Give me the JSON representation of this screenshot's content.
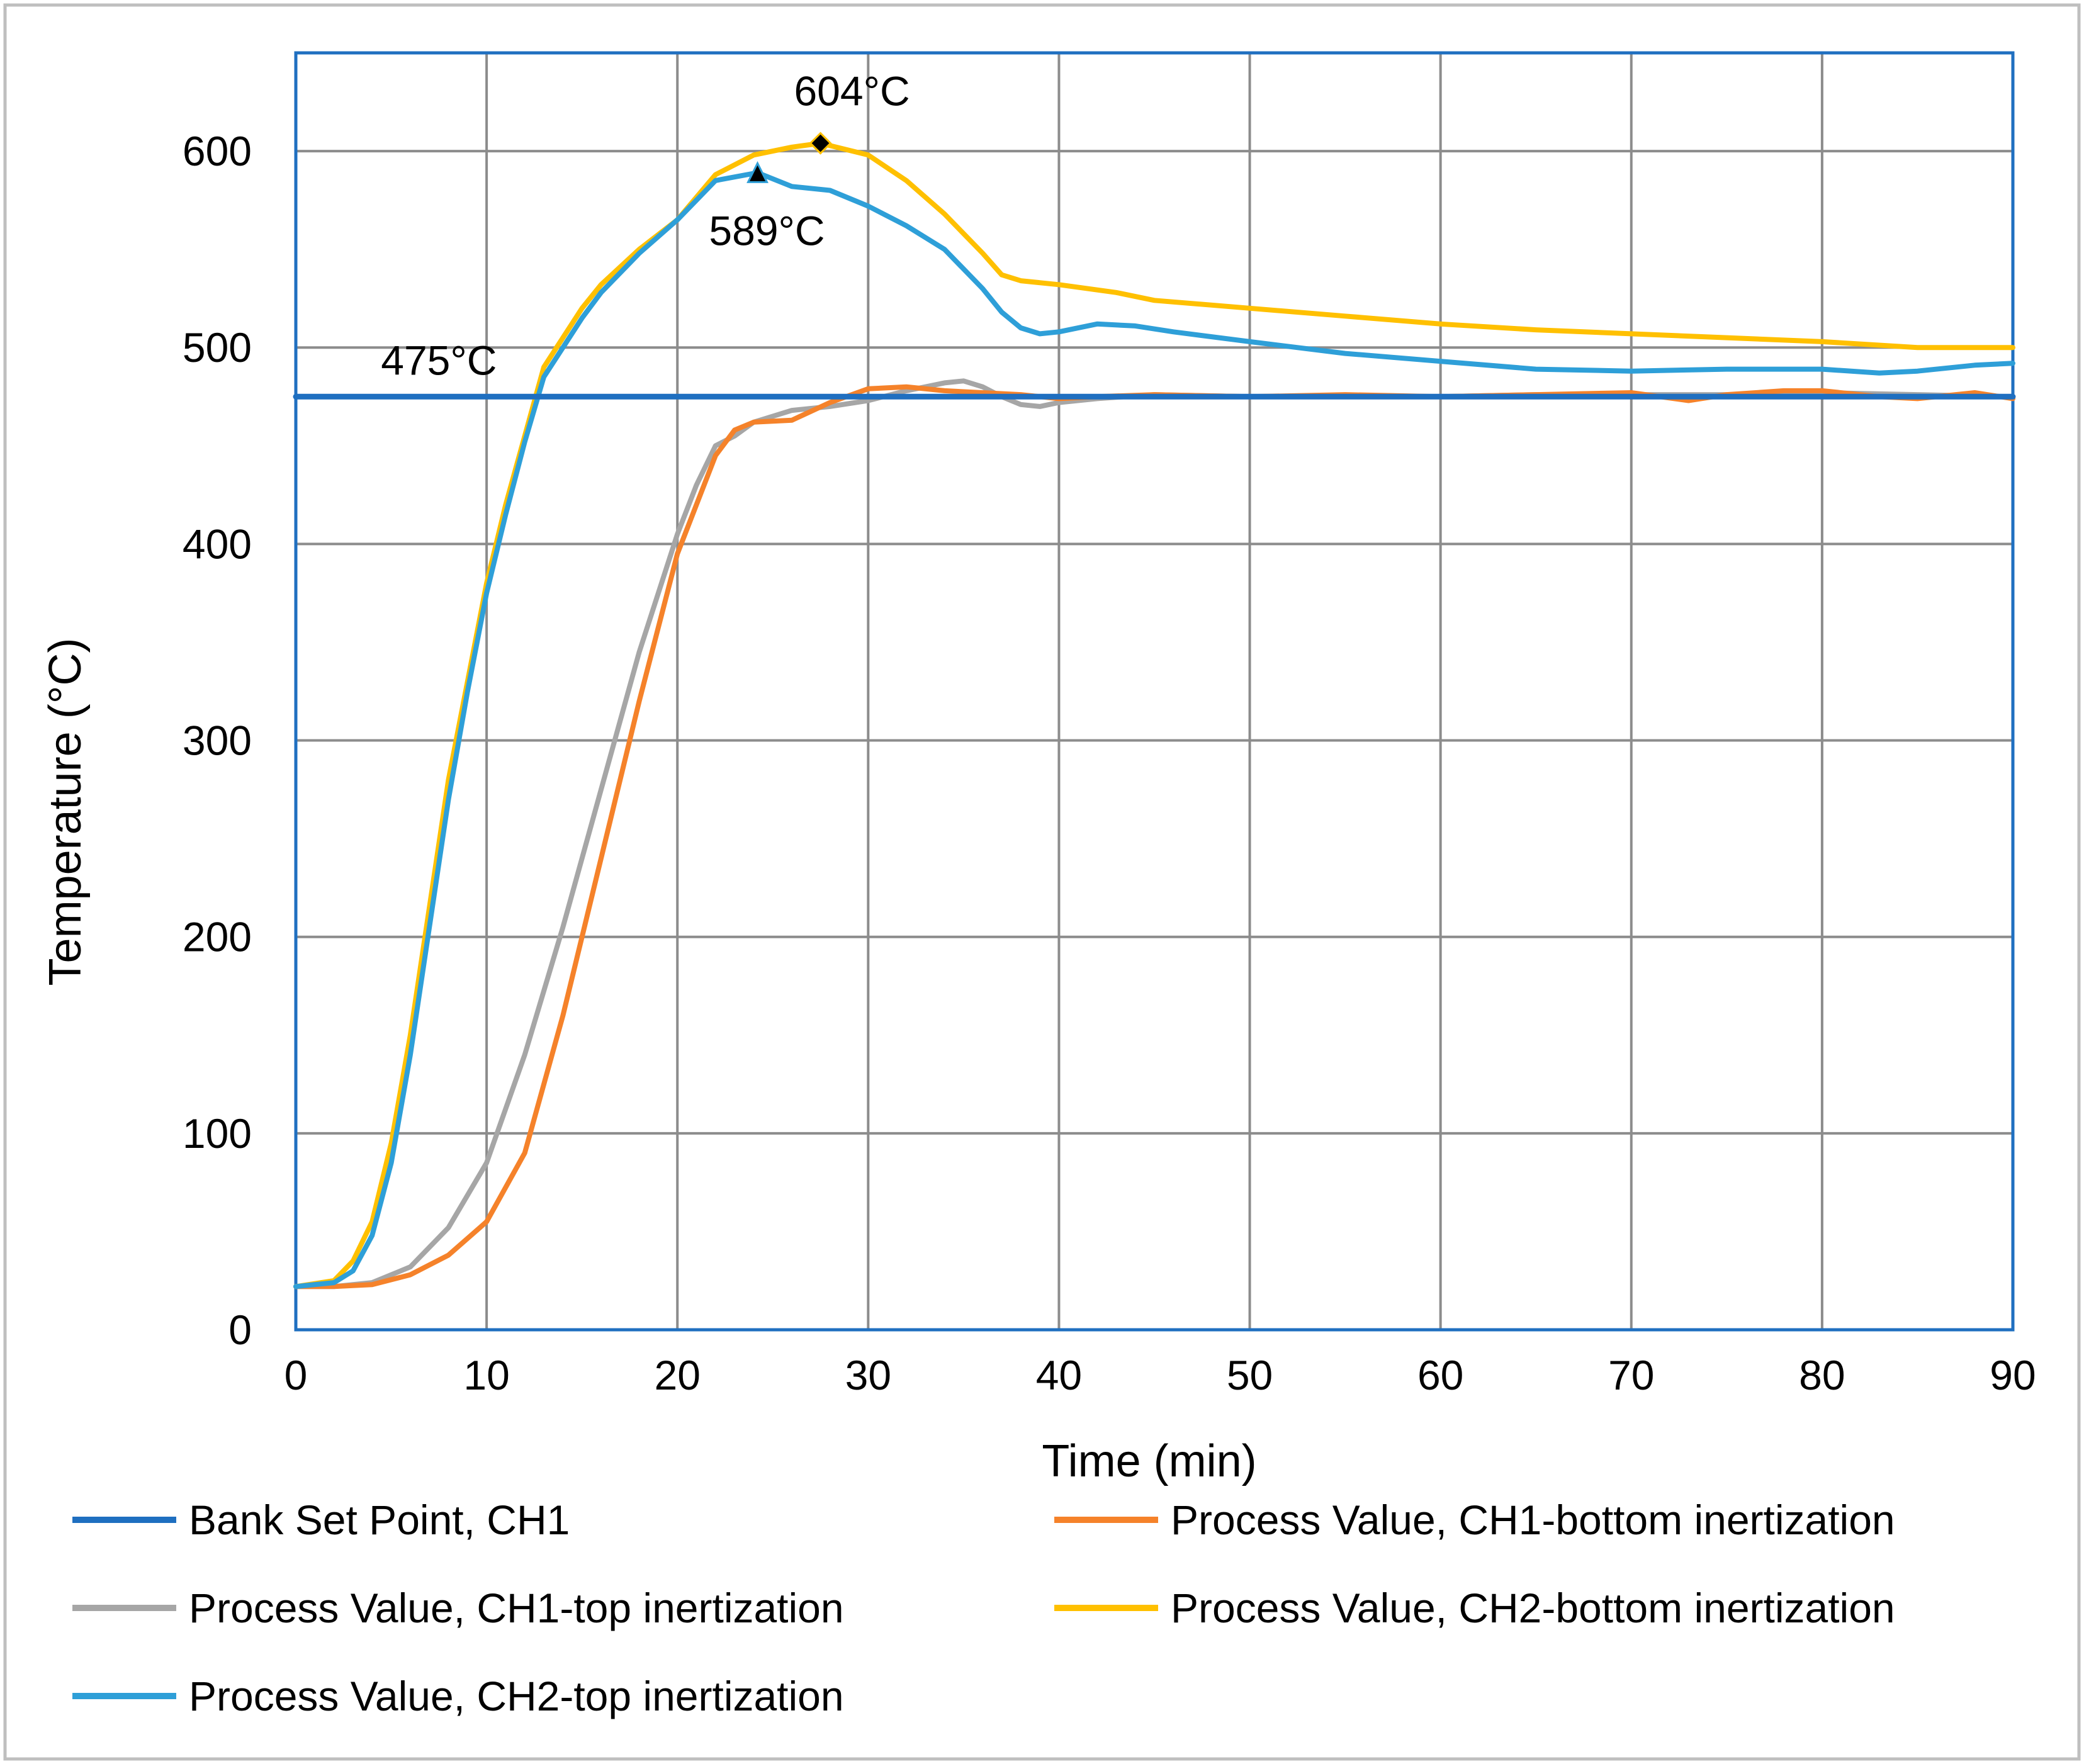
{
  "chart_data": {
    "type": "line",
    "title": "",
    "xlabel": "Time (min)",
    "ylabel": "Temperature (°C)",
    "xlim": [
      0,
      90
    ],
    "ylim": [
      0,
      650
    ],
    "xticks": [
      0,
      10,
      20,
      30,
      40,
      50,
      60,
      70,
      80,
      90
    ],
    "yticks": [
      0,
      100,
      200,
      300,
      400,
      500,
      600
    ],
    "xtick_labels": [
      "0",
      "10",
      "20",
      "30",
      "40",
      "50",
      "60",
      "70",
      "80",
      "90"
    ],
    "ytick_labels": [
      "0",
      "100",
      "200",
      "300",
      "400",
      "500",
      "600"
    ],
    "grid": true,
    "legend_position": "bottom",
    "annotations": [
      {
        "text": "475°C",
        "x": 7.5,
        "y": 475,
        "series": "Bank Set Point, CH1"
      },
      {
        "text": "604°C",
        "x": 27.5,
        "y": 604,
        "marker": "diamond",
        "series": "Process Value, CH2-bottom inertization"
      },
      {
        "text": "589°C",
        "x": 24.2,
        "y": 589,
        "marker": "triangle",
        "series": "Process Value,  CH2-top inertization"
      }
    ],
    "series": [
      {
        "name": "Bank Set Point, CH1",
        "color": "#1f6fc0",
        "x": [
          0,
          90
        ],
        "y": [
          475,
          475
        ]
      },
      {
        "name": "Process Value, CH1-bottom inertization",
        "color": "#f5822a",
        "x": [
          0,
          2,
          4,
          6,
          8,
          10,
          12,
          14,
          16,
          18,
          20,
          22,
          23,
          24,
          26,
          28,
          30,
          32,
          34,
          36,
          38,
          40,
          42,
          45,
          50,
          55,
          60,
          65,
          70,
          73,
          75,
          78,
          80,
          83,
          85,
          88,
          90
        ],
        "y": [
          22,
          22,
          23,
          28,
          38,
          55,
          90,
          160,
          240,
          320,
          395,
          445,
          458,
          462,
          463,
          472,
          479,
          480,
          478,
          477,
          476,
          474,
          475,
          476,
          475,
          476,
          475,
          476,
          477,
          473,
          476,
          478,
          478,
          475,
          474,
          477,
          474
        ]
      },
      {
        "name": "Process Value,  CH1-top inertization",
        "color": "#a6a6a6",
        "x": [
          0,
          2,
          4,
          6,
          8,
          10,
          12,
          14,
          16,
          18,
          20,
          21,
          22,
          23,
          24,
          26,
          28,
          30,
          32,
          34,
          35,
          36,
          37,
          38,
          39,
          40,
          42,
          45,
          50,
          55,
          60,
          65,
          70,
          75,
          80,
          85,
          90
        ],
        "y": [
          22,
          22,
          24,
          32,
          52,
          85,
          140,
          205,
          275,
          345,
          405,
          430,
          450,
          455,
          462,
          468,
          470,
          473,
          478,
          482,
          483,
          480,
          475,
          471,
          470,
          472,
          474,
          476,
          475,
          475,
          475,
          476,
          476,
          476,
          477,
          476,
          475
        ]
      },
      {
        "name": "Process Value, CH2-bottom inertization",
        "color": "#ffc000",
        "x": [
          0,
          2,
          3,
          4,
          5,
          6,
          7,
          8,
          9,
          10,
          11,
          12,
          13,
          14,
          15,
          16,
          18,
          20,
          22,
          24,
          26,
          27.5,
          30,
          32,
          34,
          36,
          37,
          38,
          40,
          43,
          45,
          50,
          55,
          60,
          65,
          70,
          75,
          80,
          85,
          90
        ],
        "y": [
          22,
          25,
          35,
          55,
          95,
          150,
          215,
          280,
          330,
          380,
          420,
          455,
          490,
          505,
          520,
          532,
          550,
          565,
          588,
          598,
          602,
          604,
          598,
          585,
          568,
          548,
          537,
          534,
          532,
          528,
          524,
          520,
          516,
          512,
          509,
          507,
          505,
          503,
          500,
          500
        ]
      },
      {
        "name": "Process Value,  CH2-top inertization",
        "color": "#2e9fd8",
        "x": [
          0,
          2,
          3,
          4,
          5,
          6,
          7,
          8,
          9,
          10,
          11,
          12,
          13,
          14,
          15,
          16,
          18,
          20,
          22,
          24.2,
          26,
          28,
          30,
          32,
          34,
          36,
          37,
          38,
          39,
          40,
          42,
          44,
          46,
          50,
          55,
          60,
          65,
          70,
          75,
          80,
          83,
          85,
          88,
          90
        ],
        "y": [
          22,
          24,
          30,
          48,
          85,
          140,
          205,
          270,
          325,
          375,
          415,
          452,
          485,
          500,
          515,
          528,
          548,
          565,
          585,
          589,
          582,
          580,
          572,
          562,
          550,
          530,
          518,
          510,
          507,
          508,
          512,
          511,
          508,
          503,
          497,
          493,
          489,
          488,
          489,
          489,
          487,
          488,
          491,
          492
        ]
      }
    ]
  }
}
